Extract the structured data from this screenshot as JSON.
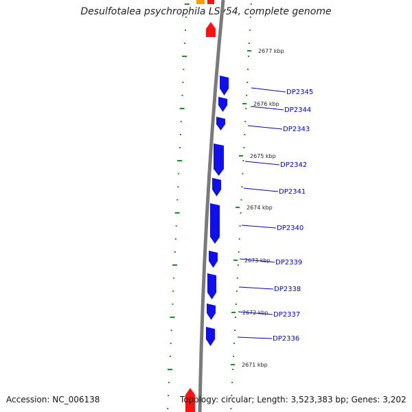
{
  "title": "Desulfotalea psychrophila LSv54, complete genome",
  "accession": "Accession: NC_006138",
  "summary": "Topology: circular; Length: 3,523,383 bp; Genes: 3,202",
  "colors": {
    "backbone": "#7a7a7a",
    "gene_blue": "#1010ee",
    "gene_red": "#ff1010",
    "gene_orange": "#ffa000",
    "ticks": "#119911",
    "label_line": "#0000cc"
  },
  "kbp_labels": [
    "2677 kbp",
    "2676 kbp",
    "2675 kbp",
    "2674 kbp",
    "2673 kbp",
    "2672 kbp",
    "2671 kbp"
  ],
  "genes": [
    {
      "label": "DP2345"
    },
    {
      "label": "DP2344"
    },
    {
      "label": "DP2343"
    },
    {
      "label": "DP2342"
    },
    {
      "label": "DP2341"
    },
    {
      "label": "DP2340"
    },
    {
      "label": "DP2339"
    },
    {
      "label": "DP2338"
    },
    {
      "label": "DP2337"
    },
    {
      "label": "DP2336"
    }
  ]
}
